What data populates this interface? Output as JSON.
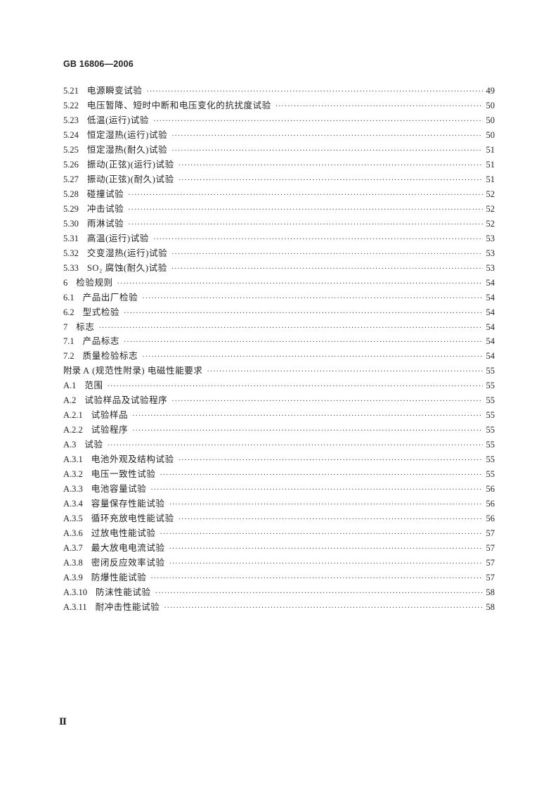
{
  "header": {
    "doc_id": "GB 16806—2006"
  },
  "toc": [
    {
      "num": "5.21",
      "title": "电源瞬变试验",
      "page": "49"
    },
    {
      "num": "5.22",
      "title": "电压暂降、短时中断和电压变化的抗扰度试验",
      "page": "50"
    },
    {
      "num": "5.23",
      "title": "低温(运行)试验",
      "page": "50"
    },
    {
      "num": "5.24",
      "title": "恒定湿热(运行)试验",
      "page": "50"
    },
    {
      "num": "5.25",
      "title": "恒定湿热(耐久)试验",
      "page": "51"
    },
    {
      "num": "5.26",
      "title": "振动(正弦)(运行)试验",
      "page": "51"
    },
    {
      "num": "5.27",
      "title": "振动(正弦)(耐久)试验",
      "page": "51"
    },
    {
      "num": "5.28",
      "title": "碰撞试验",
      "page": "52"
    },
    {
      "num": "5.29",
      "title": "冲击试验",
      "page": "52"
    },
    {
      "num": "5.30",
      "title": "雨淋试验",
      "page": "52"
    },
    {
      "num": "5.31",
      "title": "高温(运行)试验",
      "page": "53"
    },
    {
      "num": "5.32",
      "title": "交变湿热(运行)试验",
      "page": "53"
    },
    {
      "num": "5.33",
      "title": "SO₂ 腐蚀(耐久)试验",
      "page": "53"
    },
    {
      "num": "6",
      "title": "检验规则",
      "page": "54"
    },
    {
      "num": "6.1",
      "title": "产品出厂检验",
      "page": "54"
    },
    {
      "num": "6.2",
      "title": "型式检验",
      "page": "54"
    },
    {
      "num": "7",
      "title": "标志",
      "page": "54"
    },
    {
      "num": "7.1",
      "title": "产品标志",
      "page": "54"
    },
    {
      "num": "7.2",
      "title": "质量检验标志",
      "page": "54"
    },
    {
      "num": "附录 A",
      "title": "(规范性附录)  电磁性能要求",
      "page": "55"
    },
    {
      "num": "A.1",
      "title": "范围",
      "page": "55"
    },
    {
      "num": "A.2",
      "title": "试验样品及试验程序",
      "page": "55"
    },
    {
      "num": "A.2.1",
      "title": "试验样品",
      "page": "55"
    },
    {
      "num": "A.2.2",
      "title": "试验程序",
      "page": "55"
    },
    {
      "num": "A.3",
      "title": "试验",
      "page": "55"
    },
    {
      "num": "A.3.1",
      "title": "电池外观及结构试验",
      "page": "55"
    },
    {
      "num": "A.3.2",
      "title": "电压一致性试验",
      "page": "55"
    },
    {
      "num": "A.3.3",
      "title": "电池容量试验",
      "page": "56"
    },
    {
      "num": "A.3.4",
      "title": "容量保存性能试验",
      "page": "56"
    },
    {
      "num": "A.3.5",
      "title": "循环充放电性能试验",
      "page": "56"
    },
    {
      "num": "A.3.6",
      "title": "过放电性能试验",
      "page": "57"
    },
    {
      "num": "A.3.7",
      "title": "最大放电电流试验",
      "page": "57"
    },
    {
      "num": "A.3.8",
      "title": "密闭反应效率试验",
      "page": "57"
    },
    {
      "num": "A.3.9",
      "title": "防爆性能试验",
      "page": "57"
    },
    {
      "num": "A.3.10",
      "title": "防沫性能试验",
      "page": "58"
    },
    {
      "num": "A.3.11",
      "title": "耐冲击性能试验",
      "page": "58"
    }
  ],
  "footer": {
    "folio": "Ⅱ"
  }
}
